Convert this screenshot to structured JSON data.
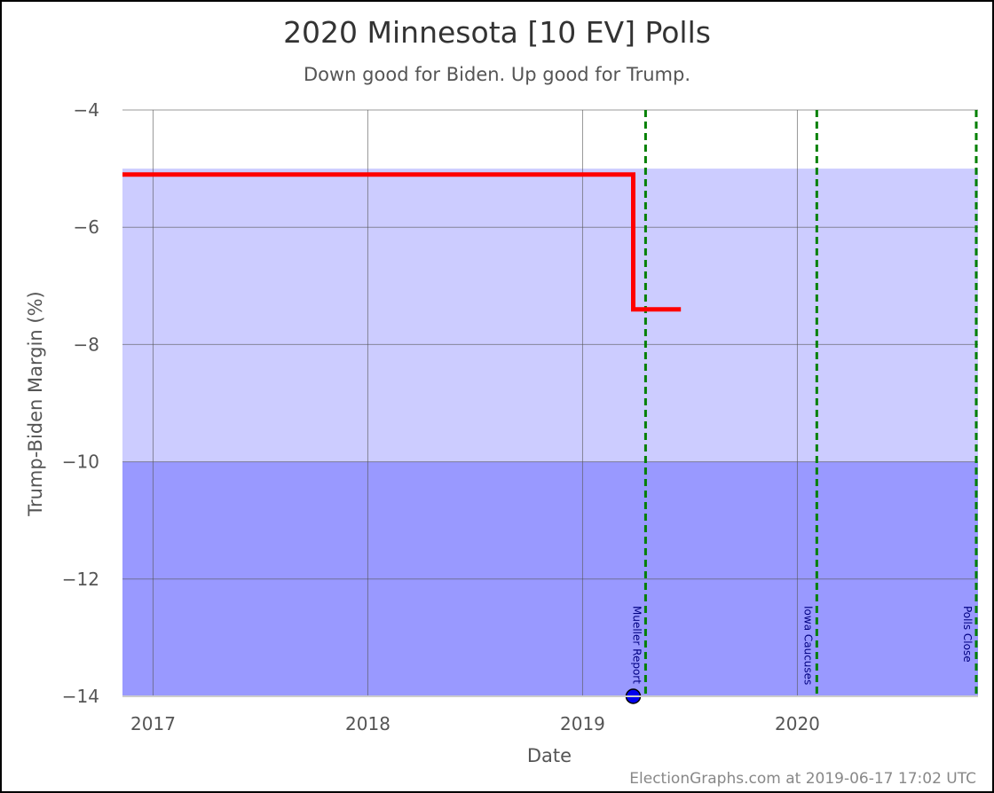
{
  "chart_data": {
    "type": "line",
    "title": "2020 Minnesota [10 EV] Polls",
    "subtitle": "Down good for Biden. Up good for Trump.",
    "xlabel": "Date",
    "ylabel": "Trump-Biden Margin (%)",
    "xlim": [
      "2016-11-10",
      "2020-11-03"
    ],
    "ylim": [
      -14,
      -4
    ],
    "x_ticks": [
      {
        "date": "2017-01-01",
        "label": "2017"
      },
      {
        "date": "2018-01-01",
        "label": "2018"
      },
      {
        "date": "2019-01-01",
        "label": "2019"
      },
      {
        "date": "2020-01-01",
        "label": "2020"
      }
    ],
    "y_ticks": [
      {
        "value": -4,
        "label": "−4"
      },
      {
        "value": -6,
        "label": "−6"
      },
      {
        "value": -8,
        "label": "−8"
      },
      {
        "value": -10,
        "label": "−10"
      },
      {
        "value": -12,
        "label": "−12"
      },
      {
        "value": -14,
        "label": "−14"
      }
    ],
    "grid": true,
    "bands": [
      {
        "from": -10,
        "to": -5,
        "color": "#ccccff"
      },
      {
        "from": -14,
        "to": -10,
        "color": "#9999ff"
      }
    ],
    "series": [
      {
        "color": "#ff0000",
        "step": true,
        "points": [
          {
            "x": "2016-11-10",
            "y": -5.1
          },
          {
            "x": "2019-03-28",
            "y": -5.1
          },
          {
            "x": "2019-03-28",
            "y": -7.4
          },
          {
            "x": "2019-06-17",
            "y": -7.4
          }
        ]
      }
    ],
    "scatter": [
      {
        "x": "2019-03-28",
        "y": -14,
        "color": "#0000ee"
      }
    ],
    "events": [
      {
        "date": "2019-04-18",
        "label": "Mueller Report",
        "color": "#008000"
      },
      {
        "date": "2020-02-03",
        "label": "Iowa Caucuses",
        "color": "#008000"
      },
      {
        "date": "2020-11-03",
        "label": "Polls Close",
        "color": "#008000"
      }
    ],
    "credit": "ElectionGraphs.com at 2019-06-17 17:02 UTC"
  }
}
